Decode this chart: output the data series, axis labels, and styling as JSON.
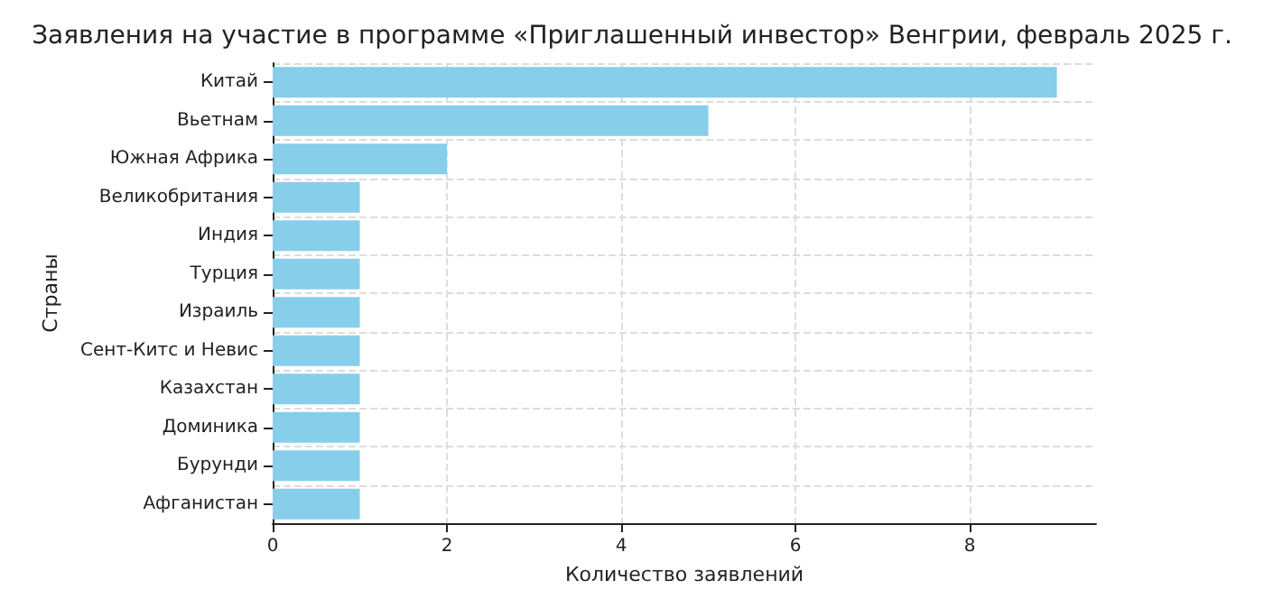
{
  "chart_data": {
    "type": "bar",
    "orientation": "horizontal",
    "title": "Заявления на участие в программе «Приглашенный инвестор» Венгрии, февраль 2025 г.",
    "xlabel": "Количество заявлений",
    "ylabel": "Страны",
    "categories": [
      "Китай",
      "Вьетнам",
      "Южная Африка",
      "Великобритания",
      "Индия",
      "Турция",
      "Израиль",
      "Сент-Китс и Невис",
      "Казахстан",
      "Доминика",
      "Бурунди",
      "Афганистан"
    ],
    "values": [
      9,
      5,
      2,
      1,
      1,
      1,
      1,
      1,
      1,
      1,
      1,
      1
    ],
    "color": "#87ceeb",
    "xlim": [
      0,
      9.45
    ],
    "xticks": [
      0,
      2,
      4,
      6,
      8
    ],
    "grid": true
  }
}
